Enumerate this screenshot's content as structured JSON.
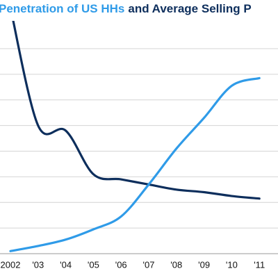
{
  "chart_data": {
    "type": "line",
    "title_parts": [
      {
        "text": "Penetration of US HHs",
        "color": "#2f9be8"
      },
      {
        "text": "and Average Selling P",
        "color": "#0d2e5c"
      }
    ],
    "categories": [
      "2002",
      "'03",
      "'04",
      "'05",
      "'06",
      "'07",
      "'08",
      "'09",
      "'10",
      "'11"
    ],
    "series": [
      {
        "color": "#0d2e5c",
        "values": [
          9.6,
          5.0,
          4.8,
          3.1,
          2.9,
          2.7,
          2.5,
          2.4,
          2.25,
          2.15
        ]
      },
      {
        "color": "#2f9be8",
        "values": [
          0.1,
          0.3,
          0.55,
          0.95,
          1.45,
          2.7,
          4.1,
          5.3,
          6.55,
          6.85
        ]
      }
    ],
    "ylim": [
      0,
      8
    ],
    "yticks": [
      0,
      1,
      2,
      3,
      4,
      5,
      6,
      7,
      8
    ],
    "grid": true
  }
}
